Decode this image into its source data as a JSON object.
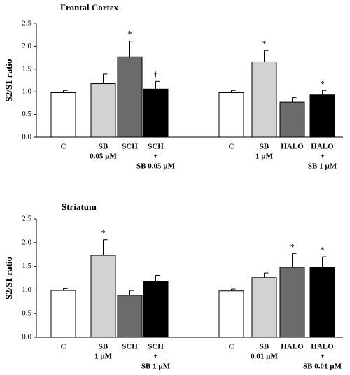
{
  "chart_data": [
    {
      "type": "bar",
      "title": "Frontal Cortex",
      "ylabel": "S2/S1 ratio",
      "ylim": [
        0,
        2.5
      ],
      "yticks": [
        "0.0",
        "0.5",
        "1.0",
        "1.5",
        "2.0",
        "2.5"
      ],
      "groups": [
        {
          "bars": [
            {
              "lines": [
                "C"
              ],
              "value": 0.98,
              "error": 0.05,
              "fill": "#ffffff",
              "sig": ""
            },
            {
              "lines": [
                "SB",
                "0.05 µM"
              ],
              "value": 1.18,
              "error": 0.21,
              "fill": "#d3d3d3",
              "sig": ""
            },
            {
              "lines": [
                "SCH"
              ],
              "value": 1.77,
              "error": 0.35,
              "fill": "#6b6b6b",
              "sig": "*"
            },
            {
              "lines": [
                "SCH",
                "+",
                "SB 0.05 µM"
              ],
              "value": 1.06,
              "error": 0.17,
              "fill": "#000000",
              "sig": "†"
            }
          ]
        },
        {
          "bars": [
            {
              "lines": [
                "C"
              ],
              "value": 0.98,
              "error": 0.05,
              "fill": "#ffffff",
              "sig": ""
            },
            {
              "lines": [
                "SB",
                "1 µM"
              ],
              "value": 1.66,
              "error": 0.25,
              "fill": "#d3d3d3",
              "sig": "*"
            },
            {
              "lines": [
                "HALO"
              ],
              "value": 0.77,
              "error": 0.1,
              "fill": "#6b6b6b",
              "sig": ""
            },
            {
              "lines": [
                "HALO",
                "+",
                "SB 1 µM"
              ],
              "value": 0.93,
              "error": 0.1,
              "fill": "#000000",
              "sig": "*"
            }
          ]
        }
      ]
    },
    {
      "type": "bar",
      "title": "Striatum",
      "ylabel": "S2/S1 ratio",
      "ylim": [
        0,
        2.5
      ],
      "yticks": [
        "0.0",
        "0.5",
        "1.0",
        "1.5",
        "2.0",
        "2.5"
      ],
      "groups": [
        {
          "bars": [
            {
              "lines": [
                "C"
              ],
              "value": 0.99,
              "error": 0.04,
              "fill": "#ffffff",
              "sig": ""
            },
            {
              "lines": [
                "SB",
                "1 µM"
              ],
              "value": 1.73,
              "error": 0.33,
              "fill": "#d3d3d3",
              "sig": "*"
            },
            {
              "lines": [
                "SCH"
              ],
              "value": 0.89,
              "error": 0.1,
              "fill": "#6b6b6b",
              "sig": ""
            },
            {
              "lines": [
                "SCH",
                "+",
                "SB 1 µM"
              ],
              "value": 1.19,
              "error": 0.12,
              "fill": "#000000",
              "sig": ""
            }
          ]
        },
        {
          "bars": [
            {
              "lines": [
                "C"
              ],
              "value": 0.98,
              "error": 0.04,
              "fill": "#ffffff",
              "sig": ""
            },
            {
              "lines": [
                "SB",
                "0.01 µM"
              ],
              "value": 1.26,
              "error": 0.1,
              "fill": "#d3d3d3",
              "sig": ""
            },
            {
              "lines": [
                "HALO"
              ],
              "value": 1.48,
              "error": 0.29,
              "fill": "#6b6b6b",
              "sig": "*"
            },
            {
              "lines": [
                "HALO",
                "+",
                "SB 0.01 µM"
              ],
              "value": 1.48,
              "error": 0.22,
              "fill": "#000000",
              "sig": "*"
            }
          ]
        }
      ]
    }
  ]
}
